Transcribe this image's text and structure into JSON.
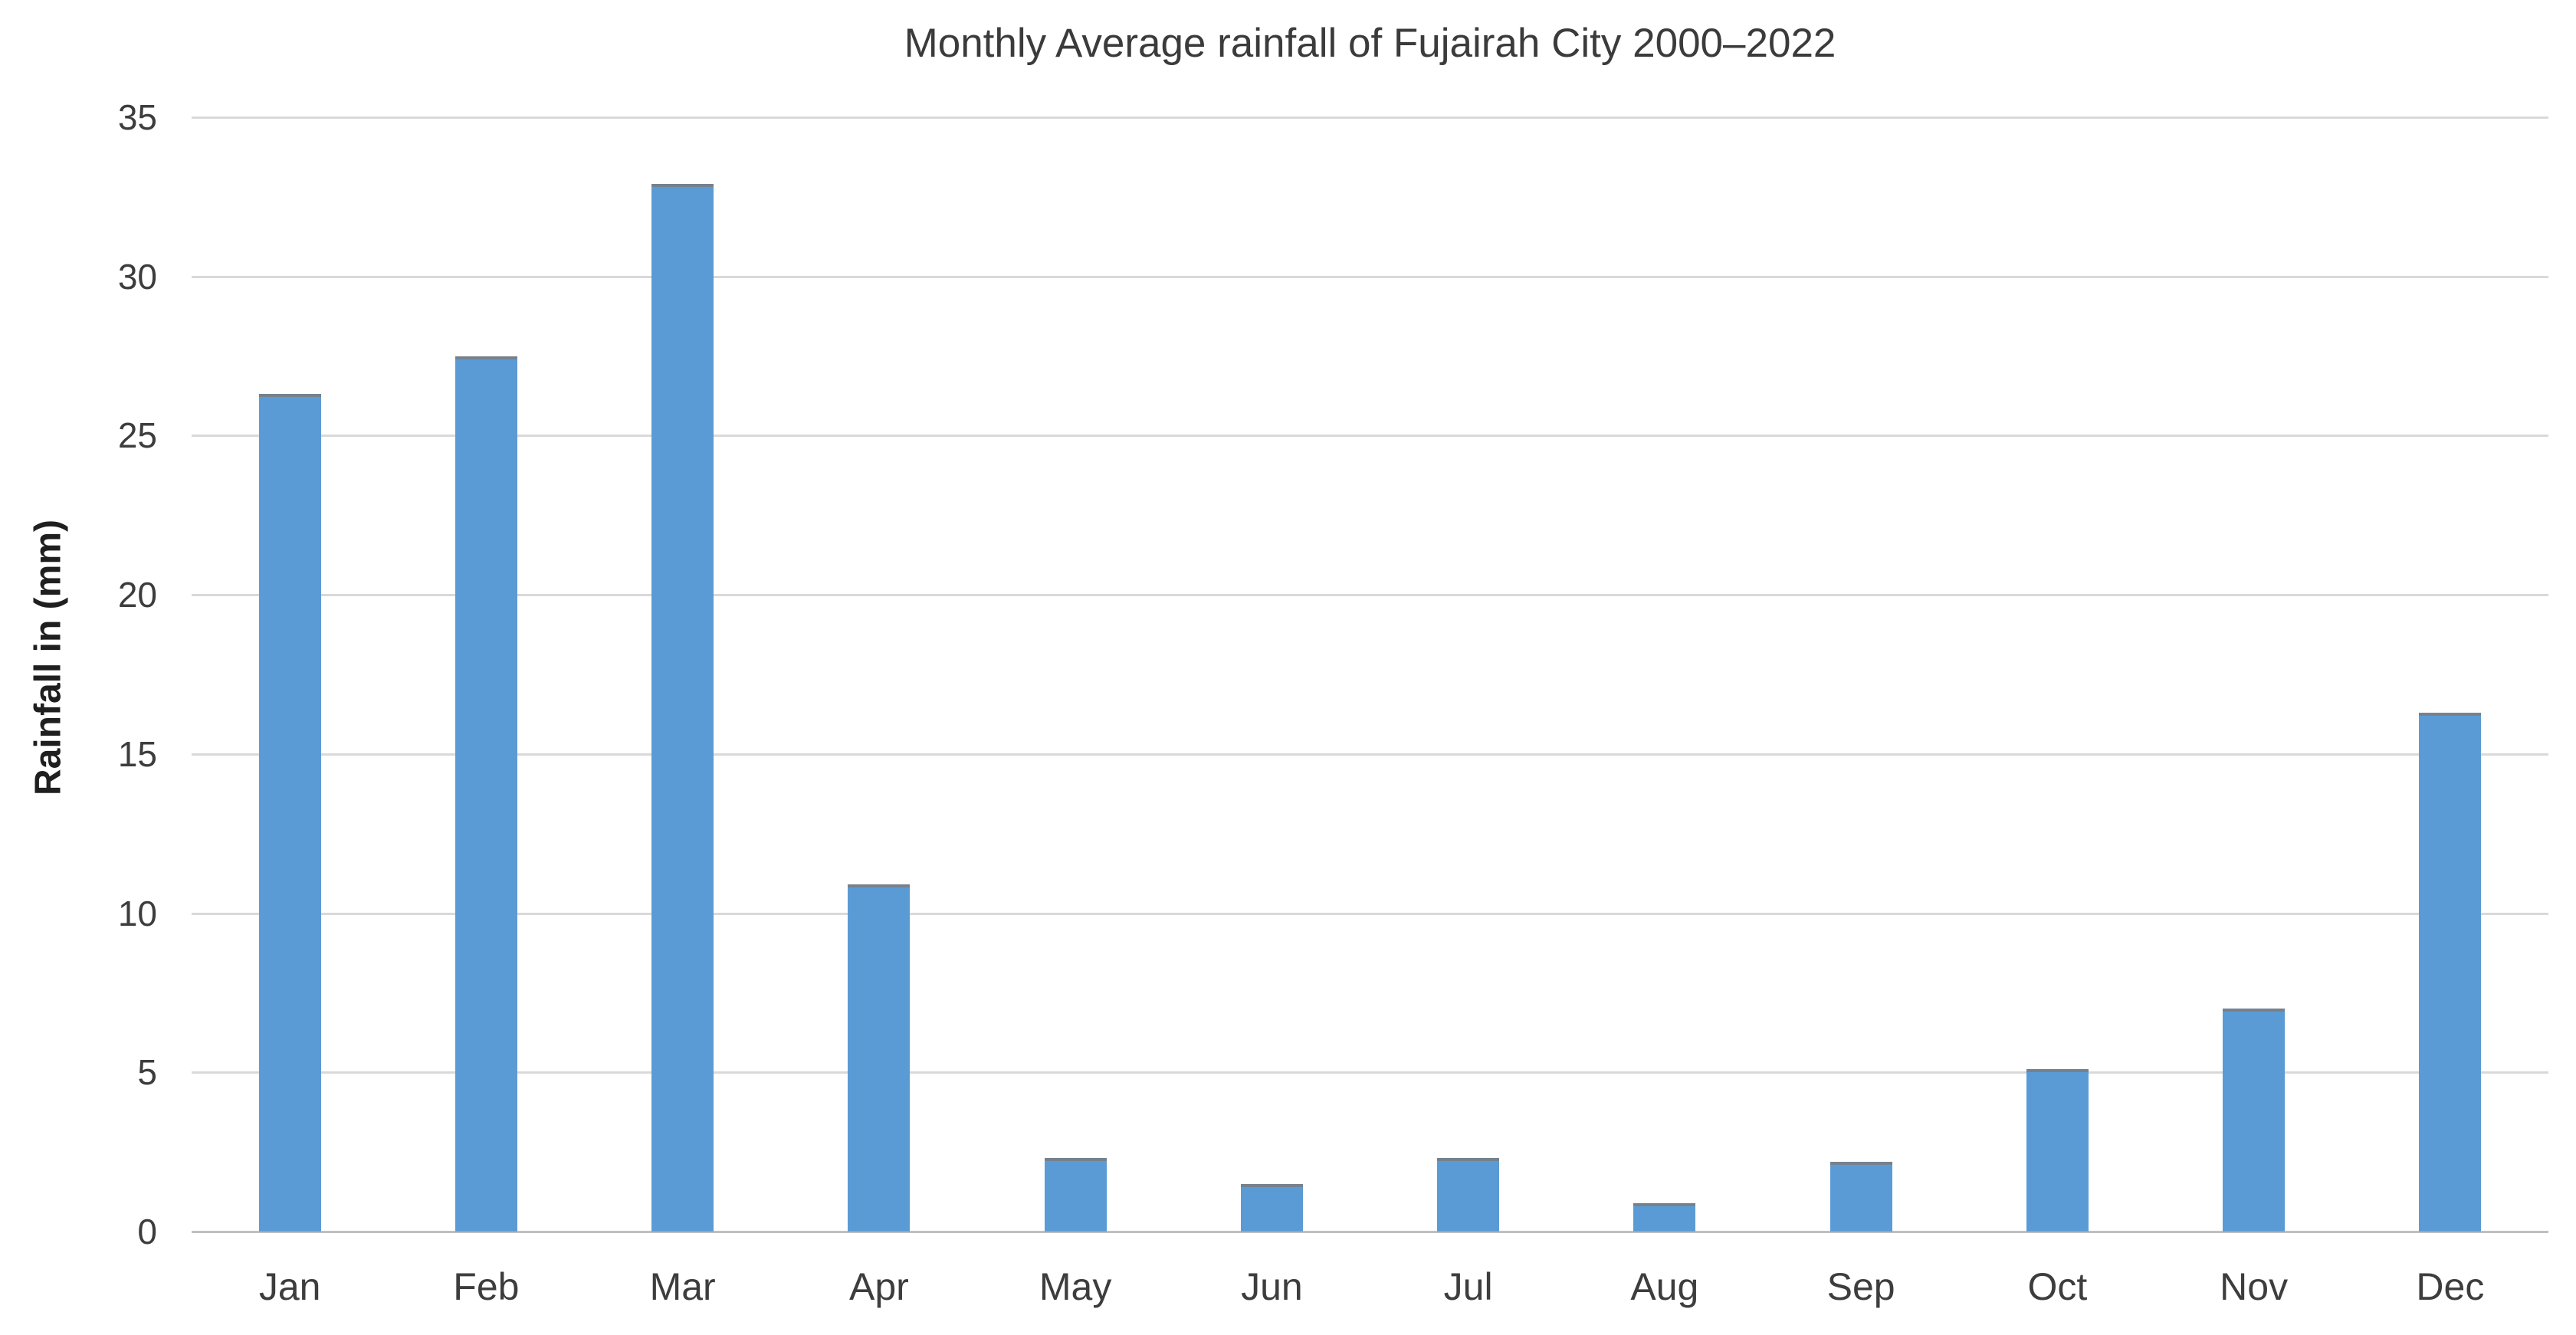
{
  "chart_data": {
    "type": "bar",
    "title": "Monthly Average rainfall of Fujairah City 2000–2022",
    "xlabel": "",
    "ylabel": "Rainfall in (mm)",
    "categories": [
      "Jan",
      "Feb",
      "Mar",
      "Apr",
      "May",
      "Jun",
      "Jul",
      "Aug",
      "Sep",
      "Oct",
      "Nov",
      "Dec"
    ],
    "values": [
      26.3,
      27.5,
      32.9,
      10.9,
      2.3,
      1.5,
      2.3,
      0.9,
      2.2,
      5.1,
      7.0,
      16.3
    ],
    "series_name": "Monthly average rainfall (mm)",
    "ylim": [
      0,
      35
    ],
    "yticks": [
      0,
      5,
      10,
      15,
      20,
      25,
      30,
      35
    ],
    "grid": true,
    "legend_position": "none"
  },
  "colors": {
    "bar_fill": "#5b9bd5",
    "bar_top_edge": "#75828e",
    "gridline": "#d9d9d9",
    "axis_line": "#bfbfbf",
    "tick_text": "#3d3d3d",
    "title_text": "#3b3b3b",
    "axis_title_text": "#1f1f1f",
    "background": "#ffffff"
  }
}
